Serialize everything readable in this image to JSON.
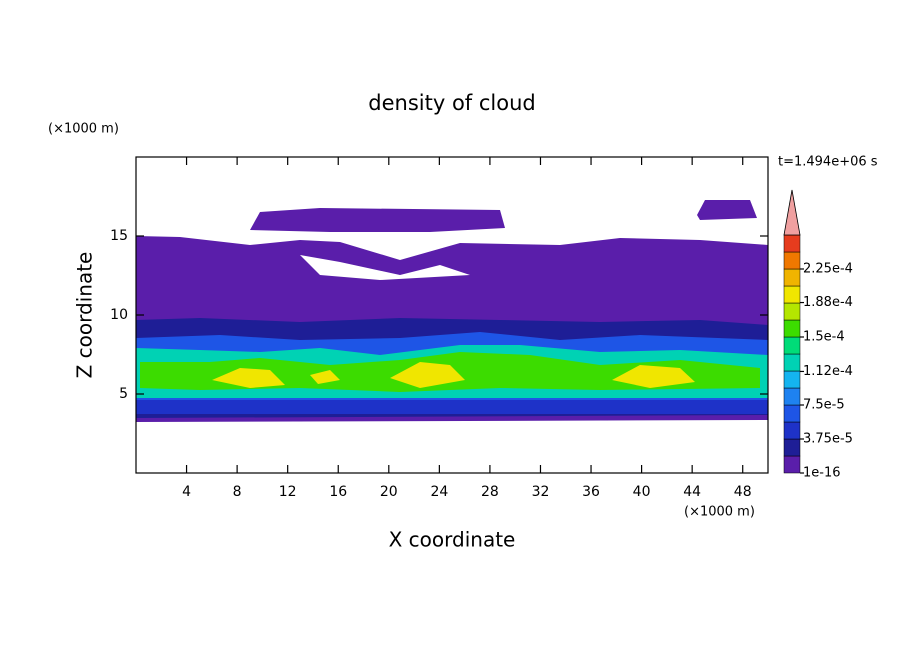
{
  "chart_data": {
    "type": "contour",
    "title": "density of cloud",
    "x_label": "X coordinate",
    "y_label": "Z coordinate",
    "x_unit": "(×1000 m)",
    "y_unit": "(×1000 m)",
    "time_label": "t=1.494e+06 s",
    "xlim": [
      0,
      50
    ],
    "xticks": [
      4,
      8,
      12,
      16,
      20,
      24,
      28,
      32,
      36,
      40,
      44,
      48
    ],
    "ylim": [
      0,
      20
    ],
    "yticks": [
      5,
      10,
      15
    ],
    "colorbar": {
      "ticks": [
        1e-16,
        {
          "value": 3.75e-05,
          "label": "3.75e-5"
        },
        {
          "value": 7.5e-05,
          "label": "7.5e-5"
        },
        {
          "value": 0.000112,
          "label": "1.12e-4"
        },
        {
          "value": 0.00015,
          "label": "1.5e-4"
        },
        {
          "value": 0.000188,
          "label": "1.88e-4"
        },
        {
          "value": 0.000225,
          "label": "2.25e-4"
        }
      ],
      "step": 1.875e-05,
      "colors": [
        "#5a1eaa",
        "#1e1e96",
        "#1e32c8",
        "#1e55e6",
        "#1e82f0",
        "#14b4f0",
        "#00d2b4",
        "#00dc78",
        "#3cdc00",
        "#b4e600",
        "#f0e600",
        "#f0b400",
        "#f07800",
        "#e63c1e"
      ],
      "over_color": "#f0a0a0"
    }
  }
}
